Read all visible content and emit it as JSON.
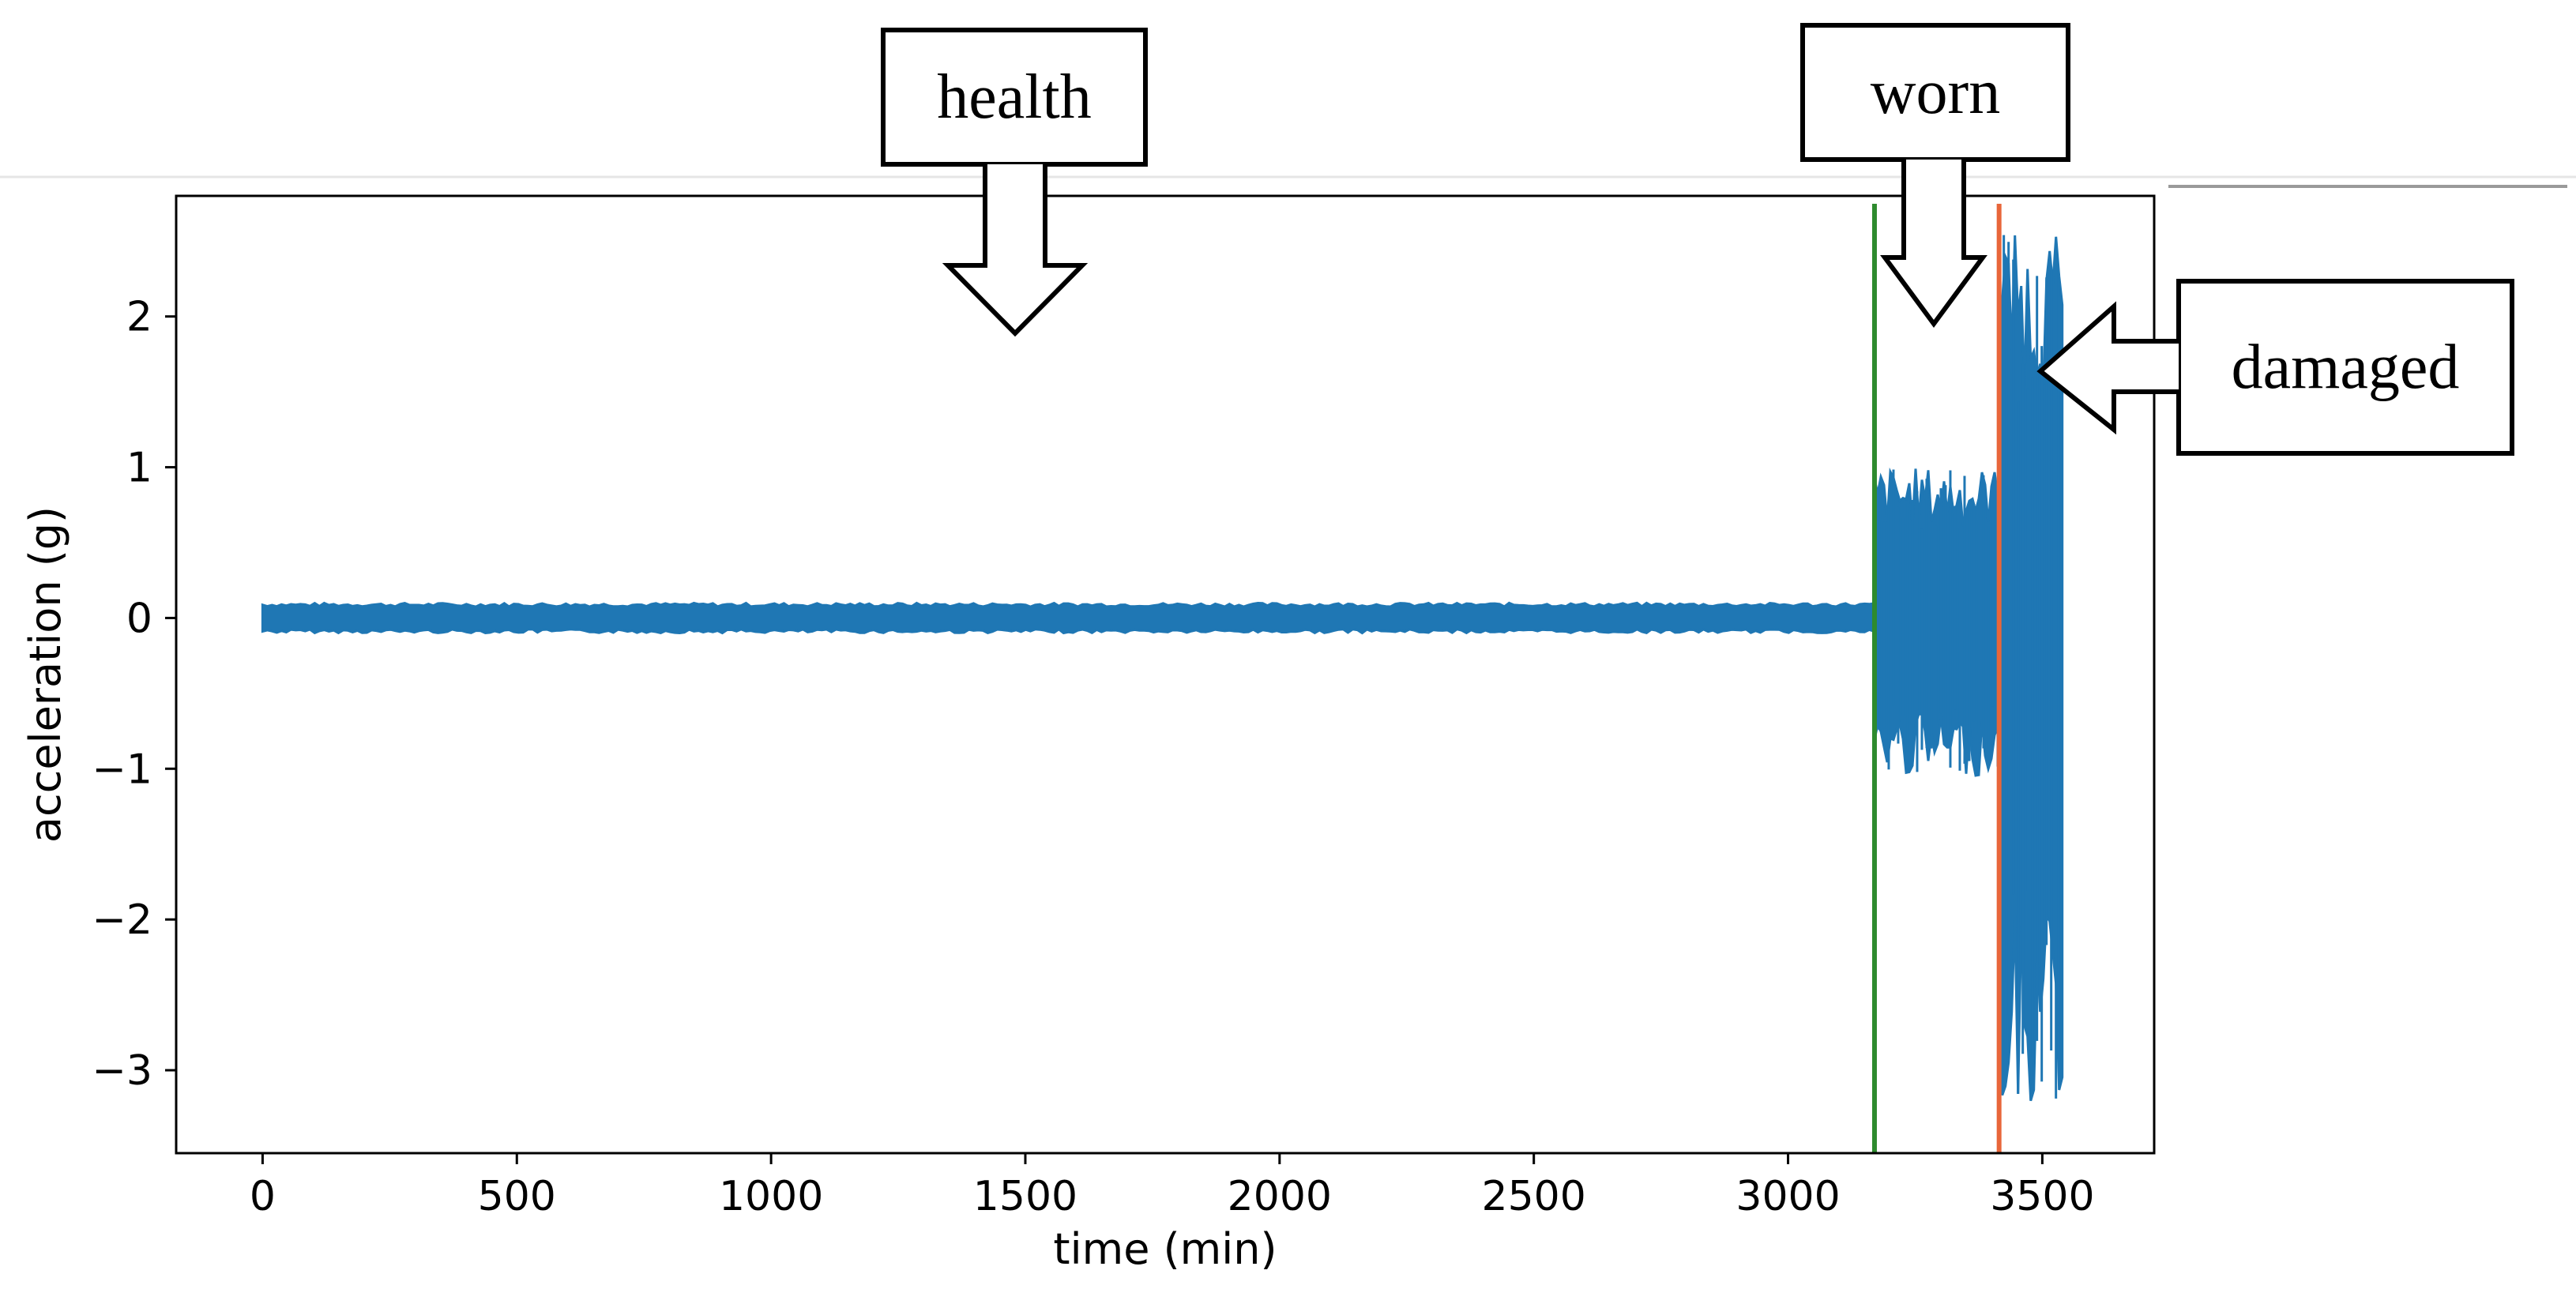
{
  "chart_data": {
    "type": "line",
    "xlabel": "time (min)",
    "ylabel": "acceleration (g)",
    "xlim": [
      -170,
      3720
    ],
    "ylim": [
      -3.55,
      2.8
    ],
    "xticks": [
      0,
      500,
      1000,
      1500,
      2000,
      2500,
      3000,
      3500
    ],
    "xtick_labels": [
      "0",
      "500",
      "1000",
      "1500",
      "2000",
      "2500",
      "3000",
      "3500"
    ],
    "yticks": [
      -3,
      -2,
      -1,
      0,
      1,
      2
    ],
    "ytick_labels": [
      "−3",
      "−2",
      "−1",
      "0",
      "1",
      "2"
    ],
    "grid": false,
    "series": [
      {
        "color": "#1f77b4",
        "segments": [
          {
            "x_start": 0,
            "x_end": 3170,
            "amplitude_min": -0.1,
            "amplitude_max": 0.1
          },
          {
            "x_start": 3170,
            "x_end": 3415,
            "amplitude_min": -1.05,
            "amplitude_max": 1.0
          },
          {
            "x_start": 3415,
            "x_end": 3540,
            "amplitude_min": -3.25,
            "amplitude_max": 2.55
          }
        ]
      }
    ],
    "vertical_lines": [
      {
        "x": 3170,
        "color": "#2e8b2e"
      },
      {
        "x": 3415,
        "color": "#e8663a"
      }
    ],
    "annotations": [
      {
        "label": "health",
        "arrow_direction": "down",
        "target_x": 1490,
        "target_y": 1.95
      },
      {
        "label": "worn",
        "arrow_direction": "down",
        "target_x": 3295,
        "target_y": 1.95
      },
      {
        "label": "damaged",
        "arrow_direction": "left",
        "target_x": 3505,
        "target_y": 1.65
      }
    ]
  }
}
